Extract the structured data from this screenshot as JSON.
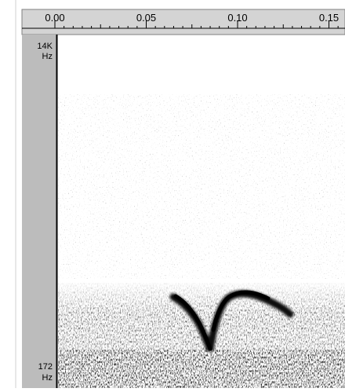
{
  "ruler": {
    "ticks": [
      "0.00",
      "0.05",
      "0.10",
      "0.15"
    ]
  },
  "frequency_axis": {
    "top": {
      "value": "14K",
      "unit": "Hz"
    },
    "bottom": {
      "value": "172",
      "unit": "Hz"
    }
  }
}
